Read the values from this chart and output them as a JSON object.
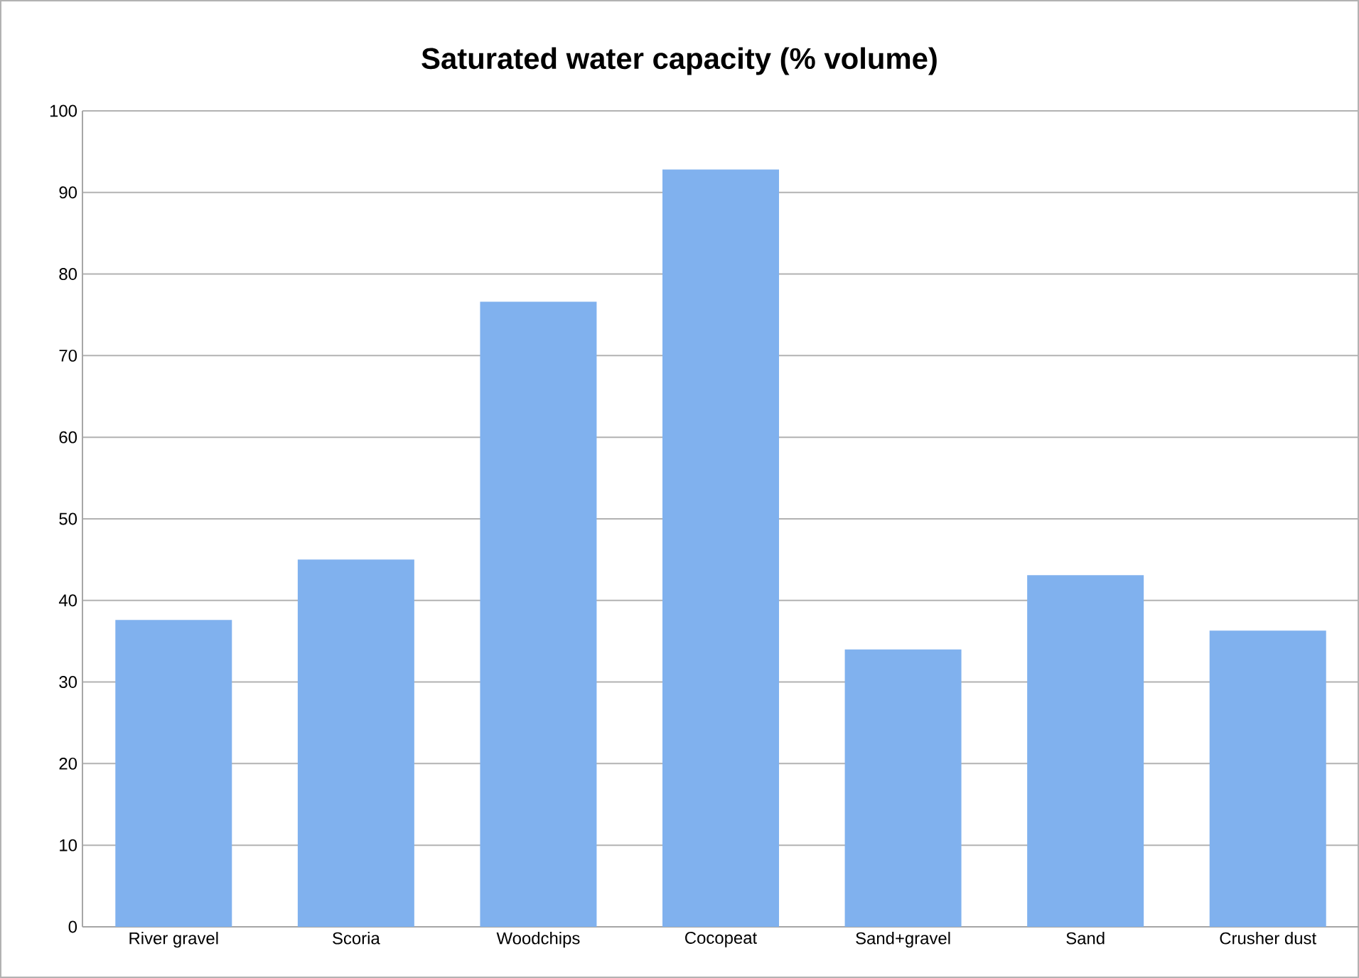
{
  "chart_data": {
    "type": "bar",
    "title": "Saturated water capacity (% volume)",
    "categories": [
      "River gravel",
      "Scoria",
      "Woodchips",
      "Cocopeat",
      "Sand+gravel",
      "Sand",
      "Crusher dust"
    ],
    "values": [
      37.6,
      45,
      76.6,
      92.8,
      34,
      43.1,
      36.3
    ],
    "color": "#80b1ee",
    "ylim": [
      0,
      100
    ],
    "yticks": [
      0,
      10,
      20,
      30,
      40,
      50,
      60,
      70,
      80,
      90,
      100
    ],
    "grid": "y"
  }
}
